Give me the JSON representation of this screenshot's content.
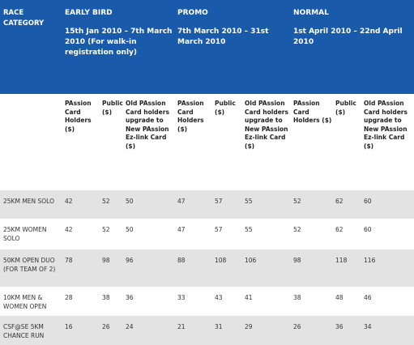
{
  "header": {
    "category_label": "RACE CATEGORY",
    "periods": [
      {
        "name": "EARLY BIRD",
        "dates": "15th Jan 2010 – 7th March 2010 (For walk-in registration only)"
      },
      {
        "name": "PROMO",
        "dates": "7th March 2010 – 31st March 2010"
      },
      {
        "name": "NORMAL",
        "dates": "1st April 2010 – 22nd April 2010"
      }
    ]
  },
  "subheaders": [
    "PAssion Card Holders ($)",
    "Public ($)",
    "Old PAssion Card holders upgrade to New PAssion Ez-link Card ($)"
  ],
  "rows": [
    {
      "race": "25KM MEN SOLO",
      "prices": [
        "42",
        "52",
        "50",
        "47",
        "57",
        "55",
        "52",
        "62",
        "60"
      ]
    },
    {
      "race": "25KM WOMEN SOLO",
      "prices": [
        "42",
        "52",
        "50",
        "47",
        "57",
        "55",
        "52",
        "62",
        "60"
      ]
    },
    {
      "race": "50KM OPEN DUO (FOR TEAM OF 2)",
      "prices": [
        "78",
        "98",
        "96",
        "88",
        "108",
        "106",
        "98",
        "118",
        "116"
      ]
    },
    {
      "race": "10KM MEN & WOMEN OPEN",
      "prices": [
        "28",
        "38",
        "36",
        "33",
        "43",
        "41",
        "38",
        "48",
        "46"
      ]
    },
    {
      "race": "CSF@SE 5KM CHANCE RUN",
      "prices": [
        "16",
        "26",
        "24",
        "21",
        "31",
        "29",
        "26",
        "36",
        "34"
      ]
    }
  ]
}
